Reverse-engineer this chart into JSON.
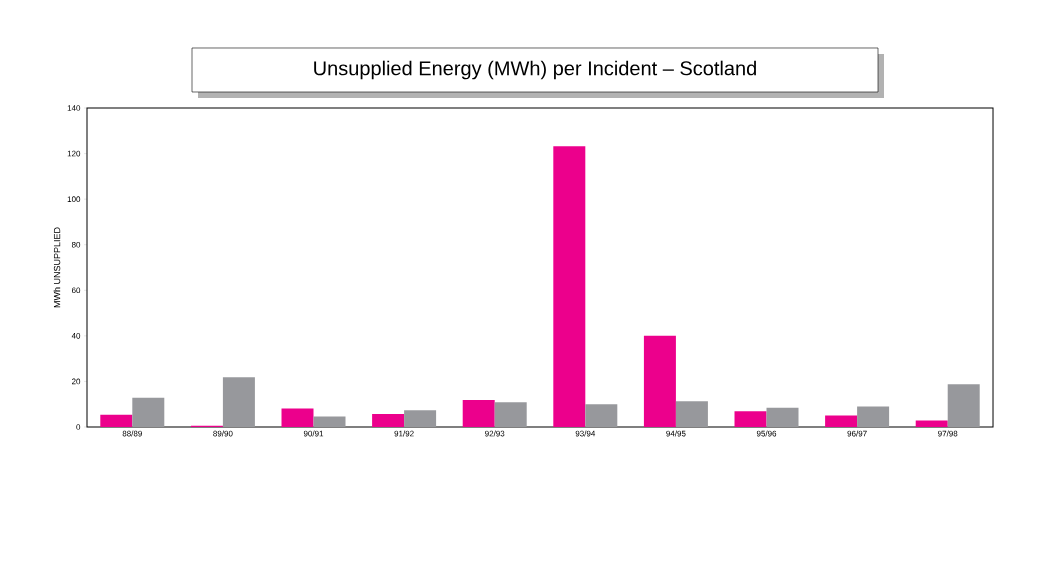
{
  "chart_data": {
    "type": "bar",
    "title": "Unsupplied Energy (MWh) per Incident – Scotland",
    "ylabel": "MWh UNSUPPLIED",
    "categories": [
      "88/89",
      "89/90",
      "90/91",
      "91/92",
      "92/93",
      "93/94",
      "94/95",
      "95/96",
      "96/97",
      "97/98"
    ],
    "series": [
      {
        "color": "#ec008c",
        "values": [
          5.4,
          0.6,
          8.1,
          5.7,
          11.8,
          123.2,
          40,
          6.9,
          5,
          2.9
        ]
      },
      {
        "color": "#97989c",
        "values": [
          12.8,
          21.8,
          4.6,
          7.4,
          10.9,
          10,
          11.3,
          8.4,
          9,
          18.8
        ]
      }
    ],
    "ylim": [
      0,
      140
    ],
    "yticks": [
      0,
      20,
      40,
      60,
      80,
      100,
      120,
      140
    ],
    "grid": false
  }
}
